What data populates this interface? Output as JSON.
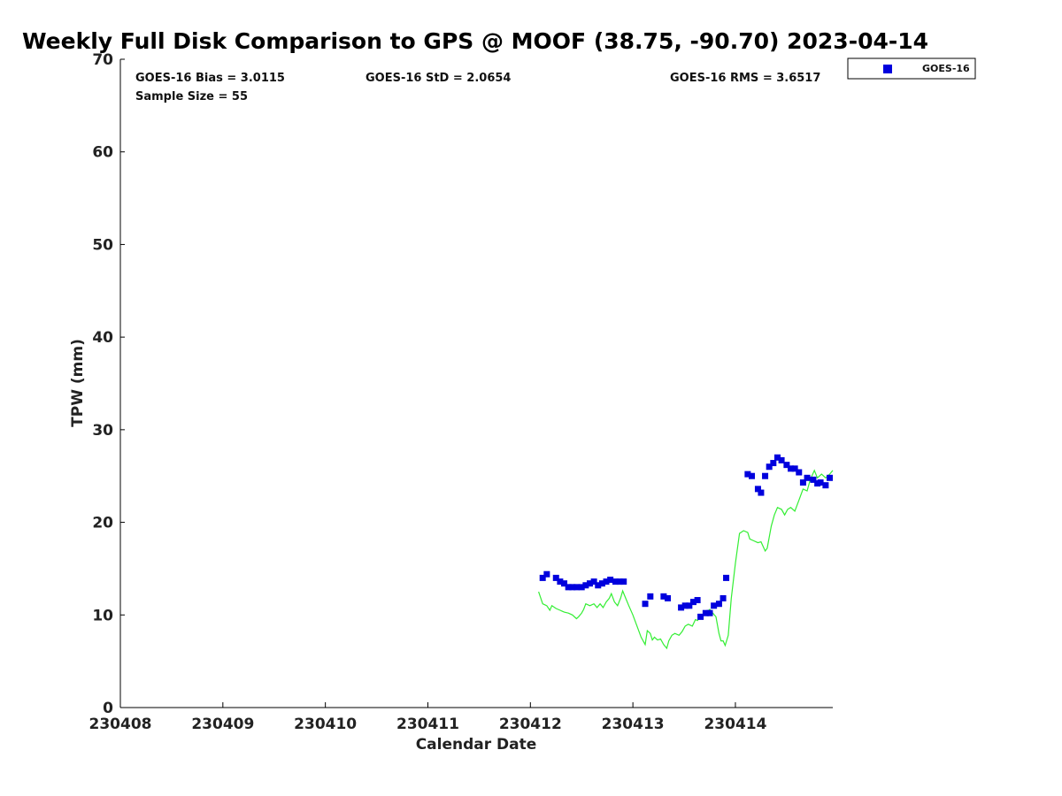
{
  "chart_data": {
    "type": "scatter",
    "title": "Weekly Full Disk Comparison to GPS @ MOOF (38.75, -90.70) 2023-04-14",
    "xlabel": "Calendar Date",
    "ylabel": "TPW (mm)",
    "xlim": [
      230408,
      230414.95
    ],
    "ylim": [
      0,
      70
    ],
    "x_ticks": [
      {
        "value": 230408,
        "label": "230408"
      },
      {
        "value": 230409,
        "label": "230409"
      },
      {
        "value": 230410,
        "label": "230410"
      },
      {
        "value": 230411,
        "label": "230411"
      },
      {
        "value": 230412,
        "label": "230412"
      },
      {
        "value": 230413,
        "label": "230413"
      },
      {
        "value": 230414,
        "label": "230414"
      }
    ],
    "y_ticks": [
      {
        "value": 0,
        "label": "0"
      },
      {
        "value": 10,
        "label": "10"
      },
      {
        "value": 20,
        "label": "20"
      },
      {
        "value": 30,
        "label": "30"
      },
      {
        "value": 40,
        "label": "40"
      },
      {
        "value": 50,
        "label": "50"
      },
      {
        "value": 60,
        "label": "60"
      },
      {
        "value": 70,
        "label": "70"
      }
    ],
    "stats": {
      "bias": "GOES-16 Bias = 3.0115",
      "std": "GOES-16 StD = 2.0654",
      "rms": "GOES-16 RMS = 3.6517",
      "sample": "Sample Size = 55"
    },
    "legend": {
      "placement": "top-right, outside plot",
      "entries": [
        "GOES-16"
      ]
    },
    "colors": {
      "goes": "#0000dd",
      "gps": "#33ee33"
    },
    "series": [
      {
        "name": "GOES-16",
        "style": "square-markers",
        "points": [
          [
            230412.12,
            14.0
          ],
          [
            230412.16,
            14.4
          ],
          [
            230412.25,
            14.0
          ],
          [
            230412.29,
            13.6
          ],
          [
            230412.33,
            13.4
          ],
          [
            230412.37,
            13.0
          ],
          [
            230412.41,
            13.0
          ],
          [
            230412.45,
            13.0
          ],
          [
            230412.5,
            13.0
          ],
          [
            230412.54,
            13.2
          ],
          [
            230412.58,
            13.4
          ],
          [
            230412.62,
            13.6
          ],
          [
            230412.66,
            13.2
          ],
          [
            230412.7,
            13.4
          ],
          [
            230412.74,
            13.6
          ],
          [
            230412.78,
            13.8
          ],
          [
            230412.83,
            13.6
          ],
          [
            230412.87,
            13.6
          ],
          [
            230412.91,
            13.6
          ],
          [
            230413.12,
            11.2
          ],
          [
            230413.17,
            12.0
          ],
          [
            230413.3,
            12.0
          ],
          [
            230413.34,
            11.8
          ],
          [
            230413.47,
            10.8
          ],
          [
            230413.51,
            11.0
          ],
          [
            230413.55,
            11.0
          ],
          [
            230413.59,
            11.4
          ],
          [
            230413.63,
            11.6
          ],
          [
            230413.66,
            9.8
          ],
          [
            230413.71,
            10.2
          ],
          [
            230413.75,
            10.2
          ],
          [
            230413.79,
            11.0
          ],
          [
            230413.84,
            11.2
          ],
          [
            230413.88,
            11.8
          ],
          [
            230413.91,
            14.0
          ],
          [
            230414.12,
            25.2
          ],
          [
            230414.16,
            25.0
          ],
          [
            230414.22,
            23.6
          ],
          [
            230414.25,
            23.2
          ],
          [
            230414.29,
            25.0
          ],
          [
            230414.33,
            26.0
          ],
          [
            230414.37,
            26.4
          ],
          [
            230414.41,
            27.0
          ],
          [
            230414.45,
            26.7
          ],
          [
            230414.5,
            26.2
          ],
          [
            230414.54,
            25.8
          ],
          [
            230414.58,
            25.8
          ],
          [
            230414.62,
            25.4
          ],
          [
            230414.66,
            24.3
          ],
          [
            230414.7,
            24.8
          ],
          [
            230414.76,
            24.6
          ],
          [
            230414.8,
            24.2
          ],
          [
            230414.83,
            24.3
          ],
          [
            230414.88,
            24.0
          ],
          [
            230414.92,
            24.8
          ]
        ]
      },
      {
        "name": "GPS",
        "style": "line",
        "points": [
          [
            230412.08,
            12.5
          ],
          [
            230412.12,
            11.2
          ],
          [
            230412.16,
            11.0
          ],
          [
            230412.19,
            10.5
          ],
          [
            230412.21,
            11.0
          ],
          [
            230412.25,
            10.7
          ],
          [
            230412.29,
            10.5
          ],
          [
            230412.33,
            10.3
          ],
          [
            230412.37,
            10.2
          ],
          [
            230412.41,
            10.0
          ],
          [
            230412.45,
            9.6
          ],
          [
            230412.47,
            9.8
          ],
          [
            230412.5,
            10.2
          ],
          [
            230412.52,
            10.6
          ],
          [
            230412.54,
            11.2
          ],
          [
            230412.58,
            11.0
          ],
          [
            230412.62,
            11.2
          ],
          [
            230412.65,
            10.8
          ],
          [
            230412.68,
            11.2
          ],
          [
            230412.71,
            10.8
          ],
          [
            230412.74,
            11.4
          ],
          [
            230412.77,
            11.8
          ],
          [
            230412.79,
            12.3
          ],
          [
            230412.82,
            11.4
          ],
          [
            230412.85,
            11.0
          ],
          [
            230412.88,
            11.8
          ],
          [
            230412.9,
            12.6
          ],
          [
            230412.93,
            11.8
          ],
          [
            230412.96,
            11.0
          ],
          [
            230413.0,
            10.0
          ],
          [
            230413.04,
            8.8
          ],
          [
            230413.08,
            7.6
          ],
          [
            230413.12,
            6.8
          ],
          [
            230413.14,
            8.3
          ],
          [
            230413.17,
            8.0
          ],
          [
            230413.19,
            7.3
          ],
          [
            230413.21,
            7.6
          ],
          [
            230413.24,
            7.3
          ],
          [
            230413.27,
            7.4
          ],
          [
            230413.3,
            6.8
          ],
          [
            230413.33,
            6.4
          ],
          [
            230413.35,
            7.2
          ],
          [
            230413.38,
            7.8
          ],
          [
            230413.41,
            8.0
          ],
          [
            230413.45,
            7.8
          ],
          [
            230413.48,
            8.2
          ],
          [
            230413.51,
            8.8
          ],
          [
            230413.54,
            9.0
          ],
          [
            230413.58,
            8.8
          ],
          [
            230413.61,
            9.5
          ],
          [
            230413.63,
            9.4
          ],
          [
            230413.67,
            10.0
          ],
          [
            230413.71,
            10.2
          ],
          [
            230413.75,
            10.6
          ],
          [
            230413.78,
            10.2
          ],
          [
            230413.81,
            9.8
          ],
          [
            230413.84,
            8.0
          ],
          [
            230413.86,
            7.2
          ],
          [
            230413.88,
            7.2
          ],
          [
            230413.9,
            6.7
          ],
          [
            230413.93,
            7.8
          ],
          [
            230413.96,
            11.8
          ],
          [
            230414.0,
            15.6
          ],
          [
            230414.04,
            18.8
          ],
          [
            230414.08,
            19.1
          ],
          [
            230414.12,
            18.9
          ],
          [
            230414.14,
            18.2
          ],
          [
            230414.18,
            18.0
          ],
          [
            230414.22,
            17.8
          ],
          [
            230414.25,
            17.9
          ],
          [
            230414.29,
            16.9
          ],
          [
            230414.31,
            17.2
          ],
          [
            230414.35,
            19.6
          ],
          [
            230414.38,
            20.8
          ],
          [
            230414.41,
            21.6
          ],
          [
            230414.45,
            21.4
          ],
          [
            230414.48,
            20.8
          ],
          [
            230414.51,
            21.4
          ],
          [
            230414.54,
            21.6
          ],
          [
            230414.58,
            21.2
          ],
          [
            230414.62,
            22.4
          ],
          [
            230414.66,
            23.6
          ],
          [
            230414.7,
            23.4
          ],
          [
            230414.73,
            24.6
          ],
          [
            230414.77,
            25.6
          ],
          [
            230414.8,
            24.8
          ],
          [
            230414.84,
            25.2
          ],
          [
            230414.88,
            24.8
          ],
          [
            230414.92,
            25.2
          ],
          [
            230414.95,
            25.6
          ]
        ]
      }
    ]
  }
}
